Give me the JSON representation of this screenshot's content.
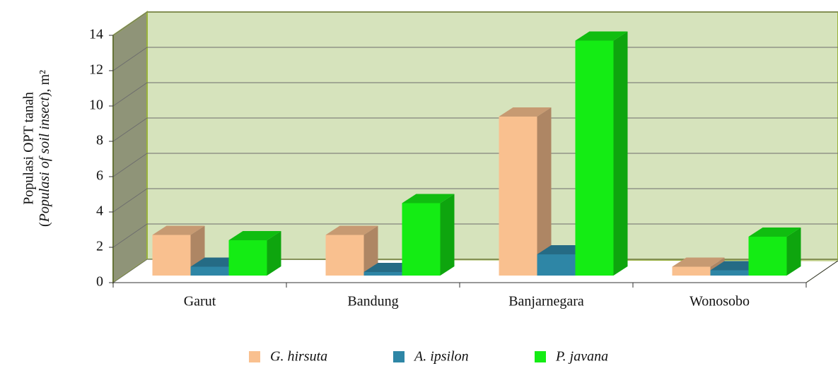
{
  "chart_data": {
    "type": "bar3d",
    "ylabel": {
      "line1": "Populasi OPT tanah",
      "line2": [
        "(",
        "Populasi of soil insect",
        "), m²"
      ]
    },
    "categories": [
      "Garut",
      "Bandung",
      "Banjarnegara",
      "Wonosobo"
    ],
    "series": [
      {
        "name": "G. hirsuta",
        "color": "#f9c08f",
        "values": [
          2.3,
          2.3,
          9.0,
          0.5
        ]
      },
      {
        "name": "A. ipsilon",
        "color": "#2e86a6",
        "values": [
          0.5,
          0.2,
          1.2,
          0.3
        ]
      },
      {
        "name": "P. javana",
        "color": "#14ec14",
        "values": [
          2.0,
          4.1,
          13.3,
          2.2
        ]
      }
    ],
    "ylim": [
      0,
      14
    ],
    "yticks": [
      0,
      2,
      4,
      6,
      8,
      10,
      12,
      14
    ],
    "grid": true
  }
}
